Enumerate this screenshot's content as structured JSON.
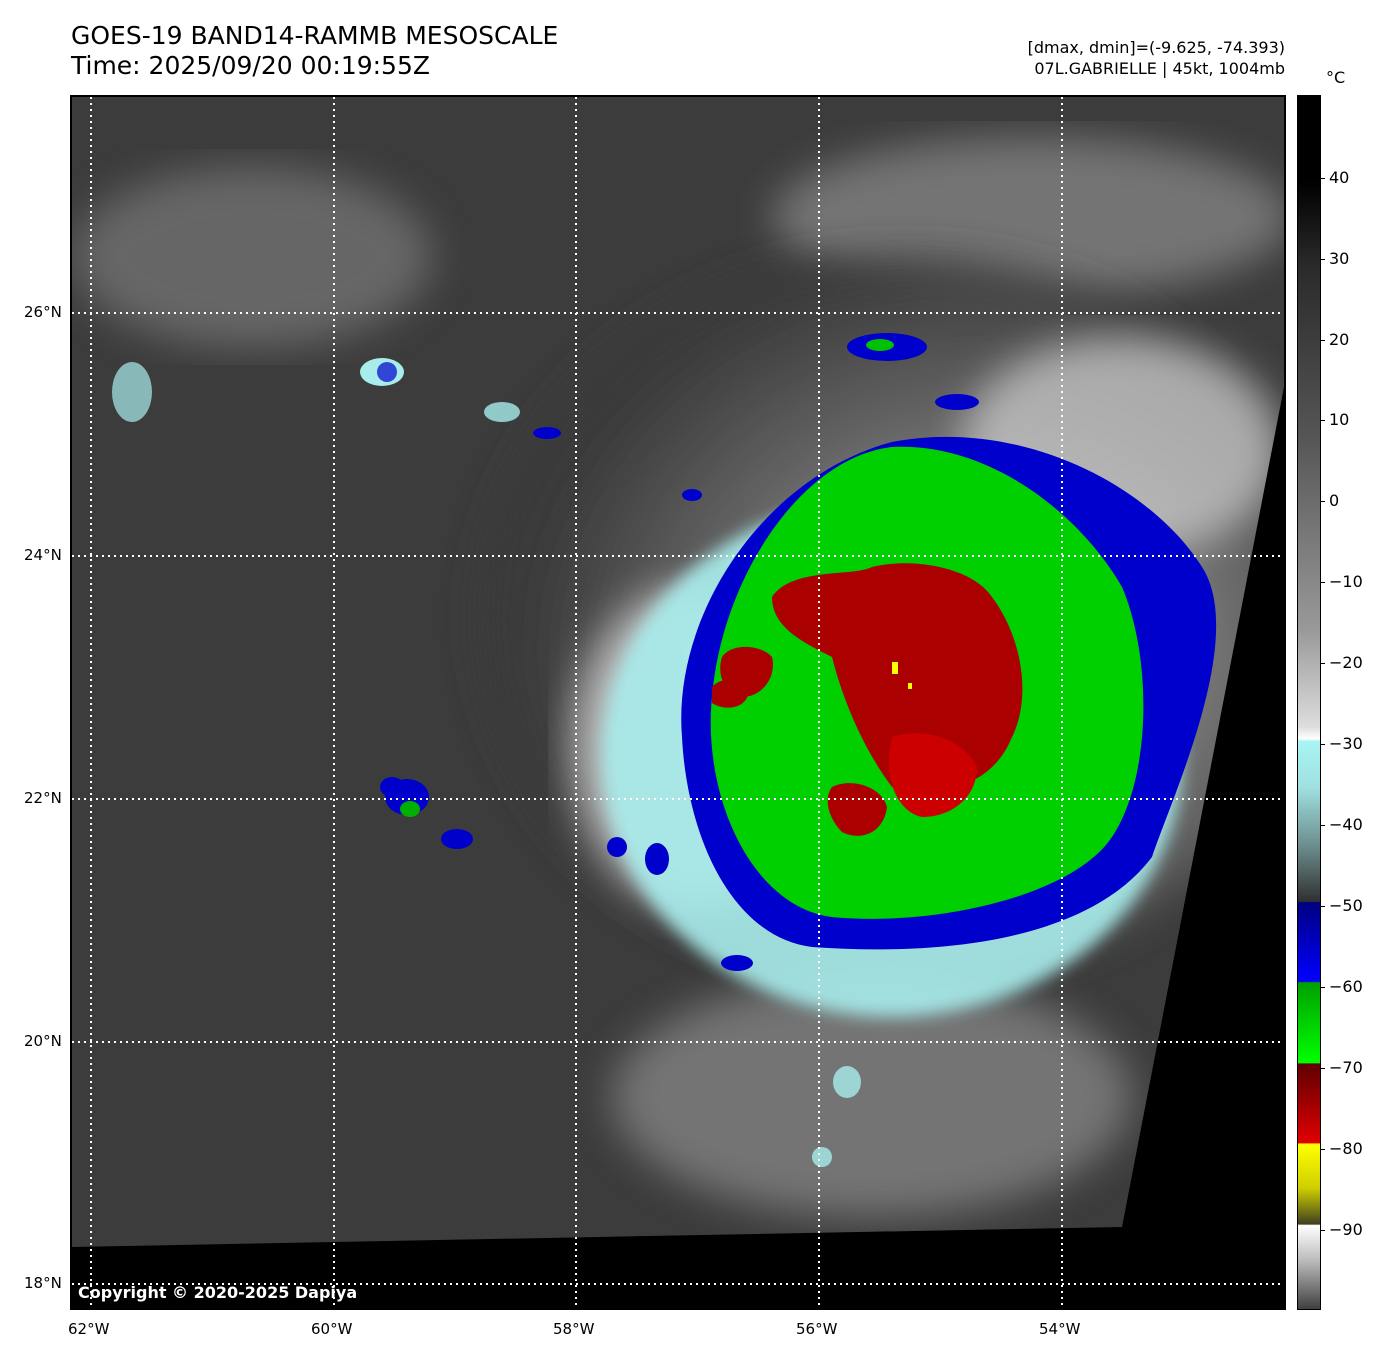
{
  "header": {
    "title_line1": "GOES-19 BAND14-RAMMB MESOSCALE",
    "title_line2": "Time: 2025/09/20 00:19:55Z",
    "info_line1": "[dmax, dmin]=(-9.625, -74.393)",
    "info_line2": "07L.GABRIELLE | 45kt, 1004mb"
  },
  "map": {
    "lat_labels": [
      "26°N",
      "24°N",
      "22°N",
      "20°N",
      "18°N"
    ],
    "lon_labels": [
      "62°W",
      "60°W",
      "58°W",
      "56°W",
      "54°W"
    ],
    "copyright": "Copyright © 2020-2025 Dapiya"
  },
  "colorbar": {
    "unit": "°C",
    "labels": [
      "40",
      "30",
      "20",
      "10",
      "0",
      "−10",
      "−20",
      "−30",
      "−40",
      "−50",
      "−60",
      "−70",
      "−80",
      "−90"
    ]
  },
  "colors": {
    "background_gray": "#3a3a3a",
    "cloud_white": "#e8e8e8",
    "cyan": "#9ee8e8",
    "blue": "#0000cc",
    "green": "#00cc00",
    "red": "#aa0000",
    "yellow": "#ffff00"
  }
}
